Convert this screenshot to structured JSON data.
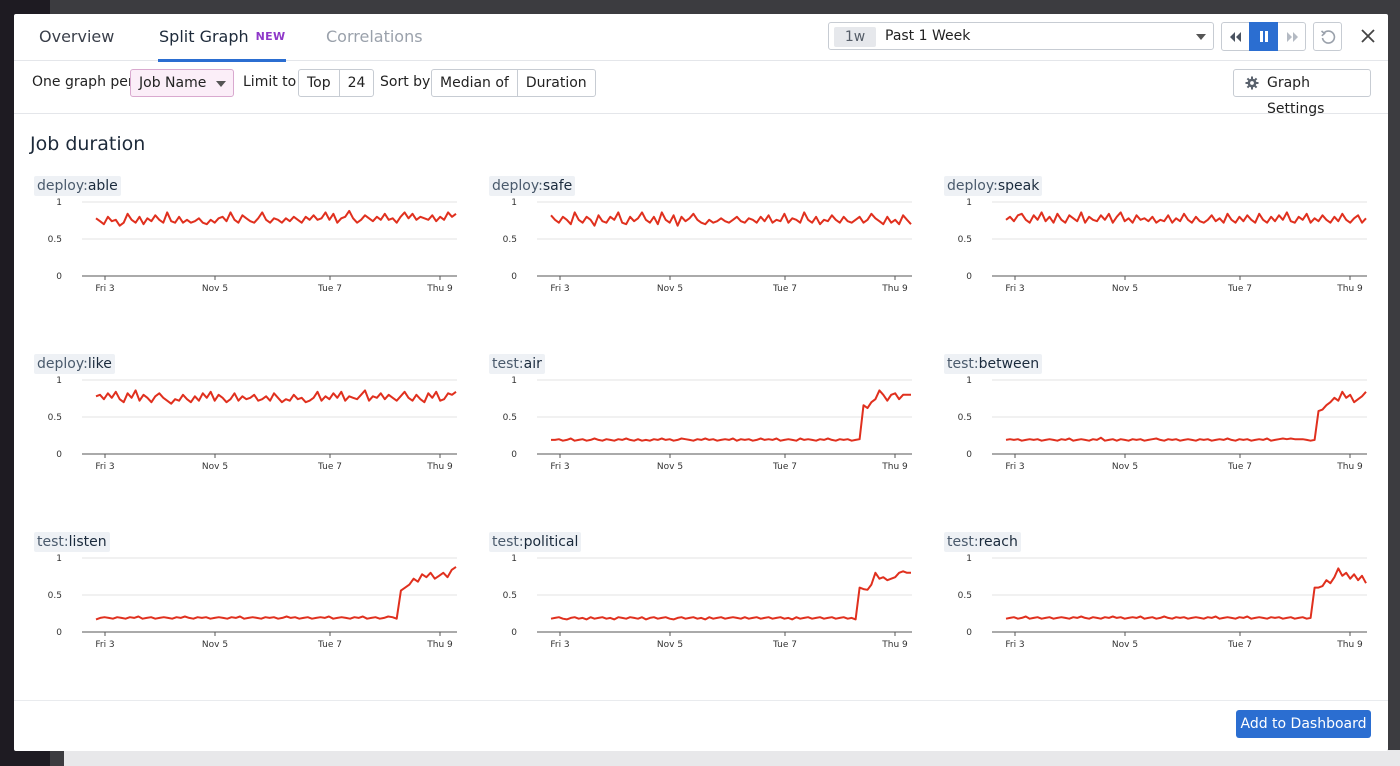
{
  "tabs": [
    {
      "label": "Overview"
    },
    {
      "label": "Split Graph",
      "badge": "NEW"
    },
    {
      "label": "Correlations"
    }
  ],
  "timepicker": {
    "chip": "1w",
    "label": "Past 1 Week"
  },
  "toolbar": {
    "one_graph_per": "One graph per",
    "group_by": "Job Name",
    "limit_to": "Limit to",
    "limit_mode": "Top",
    "limit_value": "24",
    "sort_by": "Sort by",
    "sort_agg": "Median of",
    "sort_metric": "Duration",
    "graph_settings": "Graph Settings"
  },
  "section_title": "Job duration",
  "footer": {
    "add_button": "Add to Dashboard"
  },
  "icons": [
    "rewind-icon",
    "pause-icon",
    "fast-forward-icon",
    "refresh-icon",
    "close-icon",
    "gear-icon",
    "chevron-down-icon"
  ],
  "colors": {
    "accent": "#2b6ed1",
    "series": "#e0301e",
    "badge": "#8f38c9"
  },
  "chart_data": [
    {
      "type": "line",
      "prefix": "deploy:",
      "name": "able",
      "ylim": [
        0,
        1
      ],
      "yticks": [
        "0",
        "0.5",
        "1"
      ],
      "xticks": [
        "Fri 3",
        "Nov 5",
        "Tue 7",
        "Thu 9"
      ],
      "values": [
        0.78,
        0.74,
        0.7,
        0.8,
        0.74,
        0.76,
        0.68,
        0.72,
        0.84,
        0.76,
        0.72,
        0.8,
        0.7,
        0.78,
        0.74,
        0.82,
        0.76,
        0.72,
        0.86,
        0.74,
        0.72,
        0.8,
        0.72,
        0.76,
        0.72,
        0.74,
        0.78,
        0.72,
        0.7,
        0.76,
        0.72,
        0.78,
        0.8,
        0.74,
        0.86,
        0.76,
        0.72,
        0.82,
        0.78,
        0.74,
        0.72,
        0.78,
        0.86,
        0.76,
        0.72,
        0.78,
        0.76,
        0.72,
        0.78,
        0.74,
        0.8,
        0.76,
        0.72,
        0.8,
        0.76,
        0.82,
        0.76,
        0.78,
        0.86,
        0.76,
        0.84,
        0.72,
        0.78,
        0.8,
        0.88,
        0.78,
        0.72,
        0.76,
        0.82,
        0.78,
        0.74,
        0.8,
        0.76,
        0.84,
        0.76,
        0.78,
        0.72,
        0.8,
        0.86,
        0.78,
        0.84,
        0.76,
        0.8,
        0.78,
        0.76,
        0.82,
        0.74,
        0.8,
        0.76,
        0.86,
        0.8,
        0.84
      ]
    },
    {
      "type": "line",
      "prefix": "deploy:",
      "name": "safe",
      "ylim": [
        0,
        1
      ],
      "yticks": [
        "0",
        "0.5",
        "1"
      ],
      "xticks": [
        "Fri 3",
        "Nov 5",
        "Tue 7",
        "Thu 9"
      ],
      "values": [
        0.82,
        0.76,
        0.72,
        0.8,
        0.76,
        0.7,
        0.86,
        0.76,
        0.72,
        0.8,
        0.76,
        0.68,
        0.82,
        0.74,
        0.72,
        0.8,
        0.76,
        0.86,
        0.72,
        0.7,
        0.8,
        0.74,
        0.78,
        0.86,
        0.76,
        0.72,
        0.8,
        0.7,
        0.86,
        0.76,
        0.72,
        0.82,
        0.68,
        0.8,
        0.74,
        0.78,
        0.84,
        0.76,
        0.72,
        0.7,
        0.76,
        0.72,
        0.74,
        0.78,
        0.74,
        0.72,
        0.76,
        0.8,
        0.74,
        0.72,
        0.78,
        0.76,
        0.72,
        0.8,
        0.74,
        0.82,
        0.72,
        0.76,
        0.74,
        0.84,
        0.72,
        0.78,
        0.76,
        0.72,
        0.86,
        0.76,
        0.72,
        0.8,
        0.7,
        0.76,
        0.74,
        0.82,
        0.76,
        0.72,
        0.8,
        0.74,
        0.72,
        0.76,
        0.8,
        0.72,
        0.76,
        0.84,
        0.78,
        0.74,
        0.7,
        0.8,
        0.72,
        0.76,
        0.7,
        0.82,
        0.76,
        0.7
      ]
    },
    {
      "type": "line",
      "prefix": "deploy:",
      "name": "speak",
      "ylim": [
        0,
        1
      ],
      "yticks": [
        "0",
        "0.5",
        "1"
      ],
      "xticks": [
        "Fri 3",
        "Nov 5",
        "Tue 7",
        "Thu 9"
      ],
      "values": [
        0.76,
        0.8,
        0.74,
        0.82,
        0.84,
        0.76,
        0.72,
        0.82,
        0.76,
        0.86,
        0.74,
        0.8,
        0.72,
        0.84,
        0.76,
        0.72,
        0.82,
        0.78,
        0.74,
        0.86,
        0.72,
        0.8,
        0.76,
        0.74,
        0.82,
        0.76,
        0.84,
        0.72,
        0.8,
        0.86,
        0.74,
        0.78,
        0.72,
        0.82,
        0.76,
        0.78,
        0.74,
        0.8,
        0.72,
        0.76,
        0.74,
        0.82,
        0.72,
        0.78,
        0.74,
        0.84,
        0.76,
        0.72,
        0.8,
        0.74,
        0.72,
        0.76,
        0.82,
        0.74,
        0.78,
        0.72,
        0.84,
        0.76,
        0.72,
        0.8,
        0.74,
        0.82,
        0.76,
        0.72,
        0.84,
        0.76,
        0.72,
        0.8,
        0.74,
        0.82,
        0.76,
        0.86,
        0.74,
        0.72,
        0.8,
        0.76,
        0.84,
        0.72,
        0.78,
        0.74,
        0.82,
        0.76,
        0.72,
        0.8,
        0.74,
        0.84,
        0.76,
        0.72,
        0.78,
        0.82,
        0.72,
        0.78
      ]
    },
    {
      "type": "line",
      "prefix": "deploy:",
      "name": "like",
      "ylim": [
        0,
        1
      ],
      "yticks": [
        "0",
        "0.5",
        "1"
      ],
      "xticks": [
        "Fri 3",
        "Nov 5",
        "Tue 7",
        "Thu 9"
      ],
      "values": [
        0.78,
        0.8,
        0.74,
        0.82,
        0.76,
        0.84,
        0.74,
        0.7,
        0.82,
        0.76,
        0.86,
        0.72,
        0.8,
        0.76,
        0.7,
        0.78,
        0.82,
        0.76,
        0.72,
        0.68,
        0.74,
        0.72,
        0.8,
        0.74,
        0.7,
        0.78,
        0.72,
        0.82,
        0.76,
        0.84,
        0.72,
        0.8,
        0.76,
        0.7,
        0.74,
        0.82,
        0.72,
        0.78,
        0.74,
        0.76,
        0.8,
        0.72,
        0.74,
        0.78,
        0.72,
        0.82,
        0.76,
        0.7,
        0.74,
        0.72,
        0.8,
        0.74,
        0.76,
        0.7,
        0.72,
        0.76,
        0.84,
        0.72,
        0.78,
        0.74,
        0.82,
        0.76,
        0.84,
        0.72,
        0.78,
        0.76,
        0.74,
        0.8,
        0.86,
        0.72,
        0.78,
        0.76,
        0.82,
        0.74,
        0.8,
        0.76,
        0.72,
        0.78,
        0.84,
        0.76,
        0.72,
        0.8,
        0.74,
        0.7,
        0.82,
        0.76,
        0.84,
        0.72,
        0.74,
        0.82,
        0.8,
        0.84
      ]
    },
    {
      "type": "line",
      "prefix": "test:",
      "name": "air",
      "ylim": [
        0,
        1
      ],
      "yticks": [
        "0",
        "0.5",
        "1"
      ],
      "xticks": [
        "Fri 3",
        "Nov 5",
        "Tue 7",
        "Thu 9"
      ],
      "values": [
        0.19,
        0.19,
        0.2,
        0.18,
        0.19,
        0.21,
        0.18,
        0.19,
        0.2,
        0.18,
        0.19,
        0.21,
        0.19,
        0.18,
        0.2,
        0.19,
        0.18,
        0.2,
        0.19,
        0.21,
        0.19,
        0.18,
        0.2,
        0.18,
        0.19,
        0.18,
        0.2,
        0.19,
        0.21,
        0.19,
        0.2,
        0.18,
        0.19,
        0.21,
        0.2,
        0.19,
        0.18,
        0.2,
        0.19,
        0.21,
        0.19,
        0.2,
        0.18,
        0.19,
        0.2,
        0.19,
        0.21,
        0.18,
        0.2,
        0.19,
        0.2,
        0.18,
        0.19,
        0.21,
        0.19,
        0.2,
        0.19,
        0.21,
        0.18,
        0.19,
        0.2,
        0.19,
        0.18,
        0.21,
        0.19,
        0.2,
        0.19,
        0.18,
        0.2,
        0.19,
        0.21,
        0.19,
        0.18,
        0.2,
        0.19,
        0.2,
        0.18,
        0.19,
        0.2,
        0.66,
        0.62,
        0.7,
        0.74,
        0.86,
        0.8,
        0.72,
        0.8,
        0.82,
        0.74,
        0.8,
        0.8,
        0.8
      ]
    },
    {
      "type": "line",
      "prefix": "test:",
      "name": "between",
      "ylim": [
        0,
        1
      ],
      "yticks": [
        "0",
        "0.5",
        "1"
      ],
      "xticks": [
        "Fri 3",
        "Nov 5",
        "Tue 7",
        "Thu 9"
      ],
      "values": [
        0.19,
        0.2,
        0.19,
        0.2,
        0.18,
        0.19,
        0.2,
        0.19,
        0.2,
        0.18,
        0.19,
        0.2,
        0.19,
        0.18,
        0.2,
        0.19,
        0.21,
        0.18,
        0.19,
        0.2,
        0.19,
        0.18,
        0.2,
        0.19,
        0.22,
        0.18,
        0.19,
        0.2,
        0.18,
        0.2,
        0.19,
        0.18,
        0.2,
        0.19,
        0.2,
        0.18,
        0.19,
        0.2,
        0.21,
        0.19,
        0.18,
        0.2,
        0.19,
        0.2,
        0.18,
        0.19,
        0.2,
        0.19,
        0.18,
        0.2,
        0.19,
        0.2,
        0.18,
        0.19,
        0.2,
        0.19,
        0.21,
        0.19,
        0.18,
        0.2,
        0.19,
        0.2,
        0.18,
        0.19,
        0.2,
        0.19,
        0.21,
        0.18,
        0.19,
        0.2,
        0.21,
        0.2,
        0.21,
        0.2,
        0.2,
        0.2,
        0.19,
        0.18,
        0.19,
        0.58,
        0.6,
        0.66,
        0.7,
        0.76,
        0.72,
        0.84,
        0.76,
        0.8,
        0.7,
        0.74,
        0.78,
        0.84
      ]
    },
    {
      "type": "line",
      "prefix": "test:",
      "name": "listen",
      "ylim": [
        0,
        1
      ],
      "yticks": [
        "0",
        "0.5",
        "1"
      ],
      "xticks": [
        "Fri 3",
        "Nov 5",
        "Tue 7",
        "Thu 9"
      ],
      "values": [
        0.17,
        0.19,
        0.2,
        0.19,
        0.18,
        0.2,
        0.19,
        0.18,
        0.2,
        0.19,
        0.21,
        0.18,
        0.19,
        0.2,
        0.18,
        0.19,
        0.2,
        0.19,
        0.18,
        0.2,
        0.19,
        0.21,
        0.19,
        0.18,
        0.2,
        0.19,
        0.2,
        0.18,
        0.19,
        0.2,
        0.19,
        0.18,
        0.2,
        0.19,
        0.21,
        0.18,
        0.19,
        0.2,
        0.19,
        0.18,
        0.2,
        0.19,
        0.2,
        0.18,
        0.19,
        0.21,
        0.19,
        0.2,
        0.18,
        0.19,
        0.2,
        0.18,
        0.19,
        0.2,
        0.19,
        0.21,
        0.18,
        0.19,
        0.2,
        0.19,
        0.18,
        0.2,
        0.19,
        0.21,
        0.18,
        0.19,
        0.2,
        0.18,
        0.19,
        0.21,
        0.2,
        0.18,
        0.56,
        0.6,
        0.64,
        0.72,
        0.68,
        0.78,
        0.74,
        0.8,
        0.72,
        0.76,
        0.8,
        0.74,
        0.84,
        0.88
      ]
    },
    {
      "type": "line",
      "prefix": "test:",
      "name": "political",
      "ylim": [
        0,
        1
      ],
      "yticks": [
        "0",
        "0.5",
        "1"
      ],
      "xticks": [
        "Fri 3",
        "Nov 5",
        "Tue 7",
        "Thu 9"
      ],
      "values": [
        0.18,
        0.19,
        0.2,
        0.18,
        0.17,
        0.19,
        0.2,
        0.18,
        0.19,
        0.17,
        0.2,
        0.18,
        0.19,
        0.2,
        0.18,
        0.19,
        0.17,
        0.2,
        0.19,
        0.18,
        0.2,
        0.19,
        0.18,
        0.2,
        0.17,
        0.19,
        0.2,
        0.18,
        0.19,
        0.2,
        0.18,
        0.17,
        0.19,
        0.2,
        0.18,
        0.19,
        0.2,
        0.18,
        0.19,
        0.17,
        0.2,
        0.18,
        0.19,
        0.2,
        0.18,
        0.19,
        0.2,
        0.19,
        0.18,
        0.2,
        0.18,
        0.19,
        0.2,
        0.18,
        0.19,
        0.2,
        0.18,
        0.19,
        0.2,
        0.18,
        0.19,
        0.17,
        0.2,
        0.18,
        0.19,
        0.2,
        0.18,
        0.19,
        0.2,
        0.18,
        0.19,
        0.2,
        0.18,
        0.19,
        0.2,
        0.18,
        0.19,
        0.17,
        0.6,
        0.58,
        0.57,
        0.64,
        0.8,
        0.72,
        0.74,
        0.7,
        0.72,
        0.74,
        0.8,
        0.82,
        0.8,
        0.8
      ]
    },
    {
      "type": "line",
      "prefix": "test:",
      "name": "reach",
      "ylim": [
        0,
        1
      ],
      "yticks": [
        "0",
        "0.5",
        "1"
      ],
      "xticks": [
        "Fri 3",
        "Nov 5",
        "Tue 7",
        "Thu 9"
      ],
      "values": [
        0.18,
        0.19,
        0.2,
        0.18,
        0.19,
        0.21,
        0.18,
        0.19,
        0.2,
        0.18,
        0.19,
        0.2,
        0.18,
        0.19,
        0.2,
        0.19,
        0.18,
        0.2,
        0.19,
        0.21,
        0.19,
        0.18,
        0.2,
        0.19,
        0.18,
        0.2,
        0.19,
        0.21,
        0.19,
        0.2,
        0.18,
        0.19,
        0.2,
        0.19,
        0.21,
        0.18,
        0.19,
        0.2,
        0.18,
        0.19,
        0.21,
        0.19,
        0.18,
        0.2,
        0.19,
        0.2,
        0.18,
        0.19,
        0.2,
        0.19,
        0.18,
        0.2,
        0.19,
        0.21,
        0.18,
        0.19,
        0.2,
        0.19,
        0.18,
        0.2,
        0.19,
        0.21,
        0.18,
        0.19,
        0.2,
        0.19,
        0.18,
        0.2,
        0.19,
        0.2,
        0.18,
        0.19,
        0.2,
        0.18,
        0.19,
        0.2,
        0.18,
        0.19,
        0.6,
        0.6,
        0.62,
        0.7,
        0.66,
        0.74,
        0.86,
        0.76,
        0.8,
        0.72,
        0.78,
        0.7,
        0.76,
        0.66
      ]
    }
  ]
}
